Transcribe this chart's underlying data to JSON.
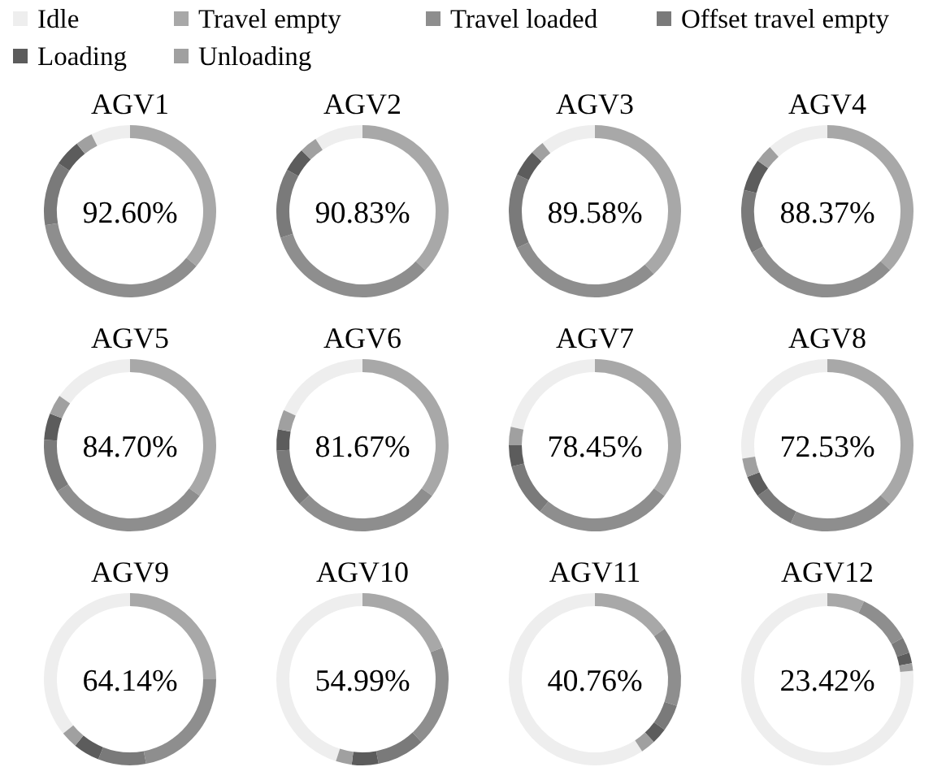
{
  "chart_data": [
    {
      "type": "donut",
      "title": "AGV1",
      "legend": "top",
      "categories": [
        "Idle",
        "Travel empty",
        "Travel loaded",
        "Offset travel empty",
        "Loading",
        "Unloading"
      ],
      "values": [
        7.4,
        36,
        36.4,
        12,
        5,
        3.2
      ],
      "colors": [
        "#eeeeee",
        "#a8a8a8",
        "#8e8e8e",
        "#7a7a7a",
        "#5c5c5c",
        "#a0a0a0"
      ],
      "annotations": [
        "92.60%"
      ]
    },
    {
      "type": "donut",
      "title": "AGV2",
      "categories": [
        null,
        null,
        null,
        null,
        null,
        null
      ],
      "values": [
        9.17,
        37,
        33,
        13,
        4.5,
        3.33
      ],
      "colors": [
        "#eeeeee",
        "#a8a8a8",
        "#8e8e8e",
        "#7a7a7a",
        "#5c5c5c",
        "#a0a0a0"
      ],
      "annotations": [
        "90.83%"
      ]
    },
    {
      "type": "donut",
      "title": "AGV3",
      "categories": [
        null,
        null,
        null,
        null,
        null,
        null
      ],
      "values": [
        10.42,
        38,
        30,
        14,
        5,
        2.58
      ],
      "colors": [
        "#eeeeee",
        "#a8a8a8",
        "#8e8e8e",
        "#7a7a7a",
        "#5c5c5c",
        "#a0a0a0"
      ],
      "annotations": [
        "89.58%"
      ]
    },
    {
      "type": "donut",
      "title": "AGV4",
      "categories": [
        null,
        null,
        null,
        null,
        null,
        null
      ],
      "values": [
        11.63,
        37,
        30,
        12,
        6,
        3.37
      ],
      "colors": [
        "#eeeeee",
        "#a8a8a8",
        "#8e8e8e",
        "#7a7a7a",
        "#5c5c5c",
        "#a0a0a0"
      ],
      "annotations": [
        "88.37%"
      ]
    },
    {
      "type": "donut",
      "title": "AGV5",
      "categories": [
        null,
        null,
        null,
        null,
        null,
        null
      ],
      "values": [
        15.3,
        35,
        31,
        10,
        5,
        3.7
      ],
      "colors": [
        "#eeeeee",
        "#a8a8a8",
        "#8e8e8e",
        "#7a7a7a",
        "#5c5c5c",
        "#a0a0a0"
      ],
      "annotations": [
        "84.70%"
      ]
    },
    {
      "type": "donut",
      "title": "AGV6",
      "categories": [
        null,
        null,
        null,
        null,
        null,
        null
      ],
      "values": [
        18.33,
        35,
        28,
        11,
        4,
        3.67
      ],
      "colors": [
        "#eeeeee",
        "#a8a8a8",
        "#8e8e8e",
        "#7a7a7a",
        "#5c5c5c",
        "#a0a0a0"
      ],
      "annotations": [
        "81.67%"
      ]
    },
    {
      "type": "donut",
      "title": "AGV7",
      "categories": [
        null,
        null,
        null,
        null,
        null,
        null
      ],
      "values": [
        21.55,
        35,
        26,
        10,
        4,
        3.45
      ],
      "colors": [
        "#eeeeee",
        "#a8a8a8",
        "#8e8e8e",
        "#7a7a7a",
        "#5c5c5c",
        "#a0a0a0"
      ],
      "annotations": [
        "78.45%"
      ]
    },
    {
      "type": "donut",
      "title": "AGV8",
      "categories": [
        null,
        null,
        null,
        null,
        null,
        null
      ],
      "values": [
        27.47,
        37,
        20,
        8,
        4,
        3.53
      ],
      "colors": [
        "#eeeeee",
        "#a8a8a8",
        "#8e8e8e",
        "#7a7a7a",
        "#5c5c5c",
        "#a0a0a0"
      ],
      "annotations": [
        "72.53%"
      ]
    },
    {
      "type": "donut",
      "title": "AGV9",
      "categories": [
        null,
        null,
        null,
        null,
        null,
        null
      ],
      "values": [
        35.86,
        25,
        22,
        9,
        5,
        3.14
      ],
      "colors": [
        "#eeeeee",
        "#a8a8a8",
        "#8e8e8e",
        "#7a7a7a",
        "#5c5c5c",
        "#a0a0a0"
      ],
      "annotations": [
        "64.14%"
      ]
    },
    {
      "type": "donut",
      "title": "AGV10",
      "categories": [
        null,
        null,
        null,
        null,
        null,
        null
      ],
      "values": [
        45.01,
        19,
        19,
        9,
        5,
        2.99
      ],
      "colors": [
        "#eeeeee",
        "#a8a8a8",
        "#8e8e8e",
        "#7a7a7a",
        "#5c5c5c",
        "#a0a0a0"
      ],
      "annotations": [
        "54.99%"
      ]
    },
    {
      "type": "donut",
      "title": "AGV11",
      "categories": [
        null,
        null,
        null,
        null,
        null,
        null
      ],
      "values": [
        59.24,
        15,
        15,
        5,
        3,
        2.76
      ],
      "colors": [
        "#eeeeee",
        "#a8a8a8",
        "#8e8e8e",
        "#7a7a7a",
        "#5c5c5c",
        "#a0a0a0"
      ],
      "annotations": [
        "40.76%"
      ]
    },
    {
      "type": "donut",
      "title": "AGV12",
      "categories": [
        null,
        null,
        null,
        null,
        null,
        null
      ],
      "values": [
        76.58,
        7,
        10,
        3,
        2,
        1.42
      ],
      "colors": [
        "#eeeeee",
        "#a8a8a8",
        "#8e8e8e",
        "#7a7a7a",
        "#5c5c5c",
        "#a0a0a0"
      ],
      "annotations": [
        "23.42%"
      ]
    }
  ]
}
